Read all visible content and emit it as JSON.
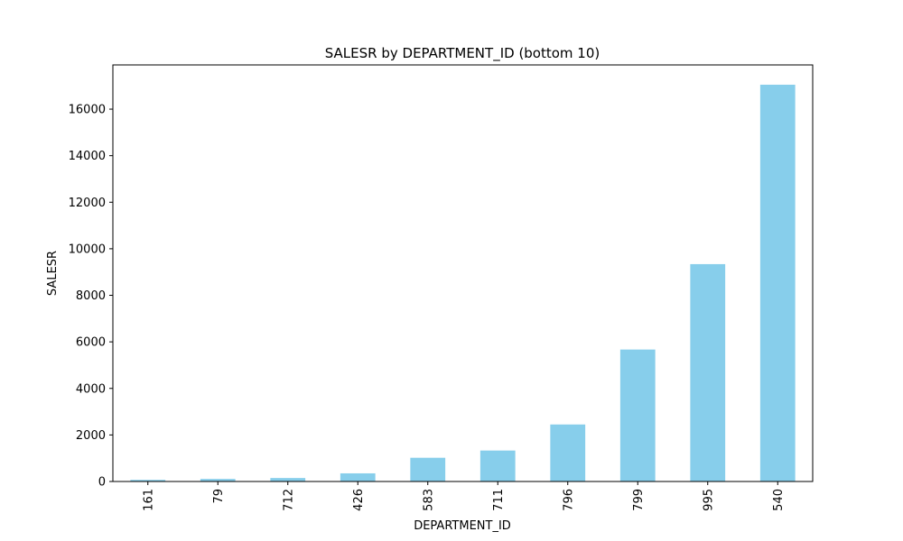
{
  "chart_data": {
    "type": "bar",
    "title": "SALESR by DEPARTMENT_ID (bottom 10)",
    "xlabel": "DEPARTMENT_ID",
    "ylabel": "SALESR",
    "categories": [
      "161",
      "79",
      "712",
      "426",
      "583",
      "711",
      "796",
      "799",
      "995",
      "540"
    ],
    "values": [
      70,
      110,
      150,
      350,
      1020,
      1330,
      2450,
      5670,
      9340,
      17050
    ],
    "ylim": [
      0,
      17900
    ],
    "yticks": [
      0,
      2000,
      4000,
      6000,
      8000,
      10000,
      12000,
      14000,
      16000
    ],
    "bar_color": "#87CEEB",
    "grid": false,
    "legend": "none"
  }
}
